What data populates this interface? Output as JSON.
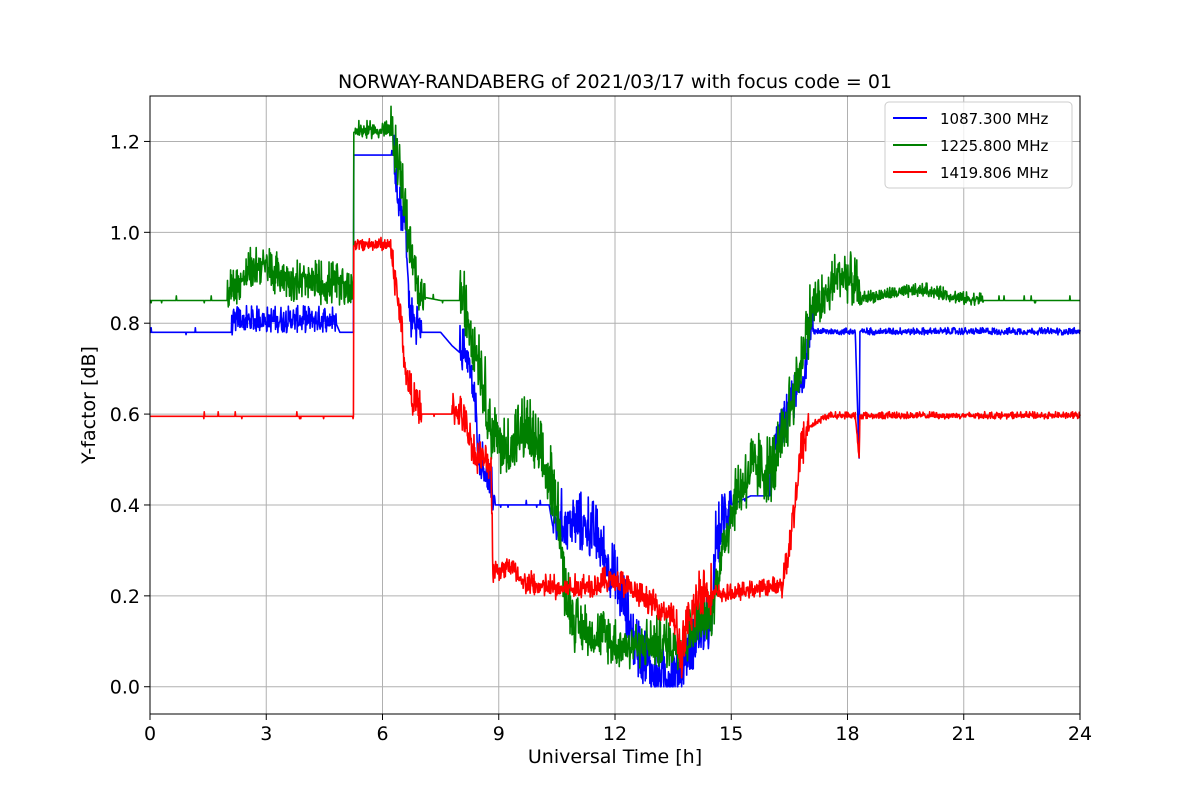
{
  "chart_data": {
    "type": "line",
    "title": "NORWAY-RANDABERG of 2021/03/17 with focus code = 01",
    "xlabel": "Universal Time [h]",
    "ylabel": "Y-factor [dB]",
    "xlim": [
      0,
      24
    ],
    "ylim": [
      -0.06,
      1.3
    ],
    "xticks": [
      0,
      3,
      6,
      9,
      12,
      15,
      18,
      21,
      24
    ],
    "xtick_labels": [
      "0",
      "3",
      "6",
      "9",
      "12",
      "15",
      "18",
      "21",
      "24"
    ],
    "yticks": [
      0.0,
      0.2,
      0.4,
      0.6,
      0.8,
      1.0,
      1.2
    ],
    "ytick_labels": [
      "0.0",
      "0.2",
      "0.4",
      "0.6",
      "0.8",
      "1.0",
      "1.2"
    ],
    "grid": true,
    "legend_position": "top-right",
    "series": [
      {
        "name": "1087.300 MHz",
        "color": "#0000ff",
        "base": [
          [
            0,
            0.78
          ],
          [
            2.1,
            0.78
          ],
          [
            2.2,
            0.8
          ],
          [
            4.8,
            0.8
          ],
          [
            4.9,
            0.78
          ],
          [
            5.25,
            0.78
          ],
          [
            5.26,
            1.17
          ],
          [
            6.3,
            1.17
          ],
          [
            6.4,
            1.05
          ],
          [
            6.6,
            1.0
          ],
          [
            6.7,
            0.8
          ],
          [
            7.0,
            0.78
          ],
          [
            7.5,
            0.78
          ],
          [
            7.8,
            0.75
          ],
          [
            8.2,
            0.72
          ],
          [
            8.4,
            0.6
          ],
          [
            8.5,
            0.5
          ],
          [
            8.9,
            0.4
          ],
          [
            10.3,
            0.4
          ],
          [
            10.4,
            0.35
          ],
          [
            11.3,
            0.34
          ],
          [
            11.6,
            0.3
          ],
          [
            12.0,
            0.22
          ],
          [
            12.3,
            0.15
          ],
          [
            12.5,
            0.08
          ],
          [
            12.9,
            0.03
          ],
          [
            13.0,
            0.01
          ],
          [
            13.6,
            0.01
          ],
          [
            13.8,
            0.05
          ],
          [
            14.1,
            0.1
          ],
          [
            14.5,
            0.12
          ],
          [
            14.6,
            0.3
          ],
          [
            15.0,
            0.4
          ],
          [
            15.5,
            0.42
          ],
          [
            16.0,
            0.42
          ],
          [
            16.1,
            0.5
          ],
          [
            16.5,
            0.6
          ],
          [
            16.9,
            0.68
          ],
          [
            17.0,
            0.78
          ],
          [
            18.2,
            0.78
          ],
          [
            18.3,
            0.5
          ],
          [
            18.32,
            0.78
          ],
          [
            24,
            0.78
          ]
        ],
        "noisy": [
          [
            2.1,
            4.8,
            0.03
          ],
          [
            6.3,
            7.0,
            0.05
          ],
          [
            8.0,
            8.9,
            0.05
          ],
          [
            10.4,
            15.0,
            0.07
          ],
          [
            16.0,
            17.1,
            0.05
          ],
          [
            17.1,
            24,
            0.008
          ]
        ]
      },
      {
        "name": "1225.800 MHz",
        "color": "#008000",
        "base": [
          [
            0,
            0.85
          ],
          [
            2.0,
            0.85
          ],
          [
            2.3,
            0.88
          ],
          [
            2.8,
            0.92
          ],
          [
            3.2,
            0.9
          ],
          [
            3.8,
            0.88
          ],
          [
            5.25,
            0.87
          ],
          [
            5.26,
            1.22
          ],
          [
            6.2,
            1.22
          ],
          [
            6.5,
            1.1
          ],
          [
            6.7,
            0.95
          ],
          [
            6.9,
            0.86
          ],
          [
            7.5,
            0.85
          ],
          [
            8.0,
            0.85
          ],
          [
            8.2,
            0.8
          ],
          [
            8.5,
            0.7
          ],
          [
            8.8,
            0.55
          ],
          [
            9.2,
            0.5
          ],
          [
            9.7,
            0.55
          ],
          [
            10.0,
            0.5
          ],
          [
            10.5,
            0.4
          ],
          [
            10.7,
            0.2
          ],
          [
            11.0,
            0.12
          ],
          [
            11.6,
            0.1
          ],
          [
            12.0,
            0.08
          ],
          [
            13.8,
            0.08
          ],
          [
            14.1,
            0.12
          ],
          [
            14.5,
            0.15
          ],
          [
            14.8,
            0.3
          ],
          [
            15.1,
            0.4
          ],
          [
            15.5,
            0.46
          ],
          [
            16.1,
            0.46
          ],
          [
            16.4,
            0.55
          ],
          [
            16.8,
            0.7
          ],
          [
            17.1,
            0.82
          ],
          [
            17.5,
            0.85
          ],
          [
            17.8,
            0.9
          ],
          [
            18.2,
            0.87
          ],
          [
            18.3,
            0.85
          ],
          [
            19.0,
            0.86
          ],
          [
            20.0,
            0.87
          ],
          [
            21.0,
            0.85
          ],
          [
            24,
            0.85
          ]
        ],
        "noisy": [
          [
            2.0,
            5.25,
            0.05
          ],
          [
            5.3,
            6.2,
            0.02
          ],
          [
            6.2,
            7.1,
            0.06
          ],
          [
            8.0,
            11.0,
            0.08
          ],
          [
            11.0,
            14.8,
            0.06
          ],
          [
            14.8,
            17.1,
            0.08
          ],
          [
            17.1,
            18.3,
            0.06
          ],
          [
            18.3,
            21.5,
            0.015
          ]
        ]
      },
      {
        "name": "1419.806 MHz",
        "color": "#ff0000",
        "base": [
          [
            0,
            0.595
          ],
          [
            5.25,
            0.595
          ],
          [
            5.26,
            0.97
          ],
          [
            6.2,
            0.97
          ],
          [
            6.3,
            0.9
          ],
          [
            6.5,
            0.78
          ],
          [
            6.6,
            0.68
          ],
          [
            6.8,
            0.62
          ],
          [
            7.0,
            0.6
          ],
          [
            7.5,
            0.6
          ],
          [
            8.0,
            0.6
          ],
          [
            8.2,
            0.55
          ],
          [
            8.4,
            0.5
          ],
          [
            8.8,
            0.48
          ],
          [
            8.85,
            0.25
          ],
          [
            9.3,
            0.26
          ],
          [
            9.6,
            0.22
          ],
          [
            10.5,
            0.21
          ],
          [
            11.0,
            0.21
          ],
          [
            11.5,
            0.22
          ],
          [
            12.0,
            0.23
          ],
          [
            12.5,
            0.2
          ],
          [
            13.5,
            0.15
          ],
          [
            13.7,
            0.05
          ],
          [
            13.9,
            0.12
          ],
          [
            14.2,
            0.2
          ],
          [
            14.5,
            0.2
          ],
          [
            15.0,
            0.2
          ],
          [
            15.6,
            0.21
          ],
          [
            16.3,
            0.22
          ],
          [
            16.5,
            0.3
          ],
          [
            16.8,
            0.5
          ],
          [
            17.0,
            0.57
          ],
          [
            17.5,
            0.595
          ],
          [
            18.2,
            0.595
          ],
          [
            18.3,
            0.5
          ],
          [
            18.32,
            0.595
          ],
          [
            24,
            0.595
          ]
        ],
        "noisy": [
          [
            5.3,
            6.2,
            0.015
          ],
          [
            6.2,
            7.0,
            0.04
          ],
          [
            7.8,
            8.85,
            0.04
          ],
          [
            8.85,
            13.5,
            0.03
          ],
          [
            13.5,
            14.5,
            0.06
          ],
          [
            14.5,
            16.3,
            0.02
          ],
          [
            16.3,
            17.0,
            0.05
          ],
          [
            17.0,
            24,
            0.008
          ]
        ]
      }
    ]
  }
}
